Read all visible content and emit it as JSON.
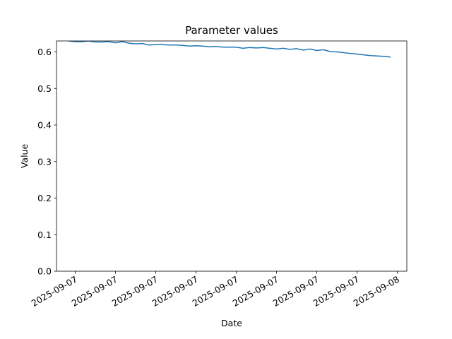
{
  "chart_data": {
    "type": "line",
    "title": "Parameter values",
    "x_label": "Date",
    "y_label": "Value",
    "categories": [
      null,
      "2025-09-07",
      null,
      null,
      null,
      null,
      null,
      "2025-09-07",
      null,
      null,
      null,
      null,
      null,
      "2025-09-07",
      null,
      null,
      null,
      null,
      null,
      "2025-09-07",
      null,
      null,
      null,
      null,
      null,
      "2025-09-07",
      null,
      null,
      null,
      null,
      null,
      "2025-09-07",
      null,
      null,
      null,
      null,
      null,
      "2025-09-07",
      null,
      null,
      null,
      null,
      null,
      "2025-09-07",
      null,
      null,
      null,
      null,
      null,
      "2025-09-08"
    ],
    "series": [
      {
        "color": "#1f77b4",
        "values": [
          0.63,
          0.628,
          0.628,
          0.63,
          0.627,
          0.627,
          0.628,
          0.625,
          0.628,
          0.624,
          0.622,
          0.623,
          0.619,
          0.62,
          0.62,
          0.619,
          0.619,
          0.618,
          0.616,
          0.617,
          0.616,
          0.614,
          0.615,
          0.613,
          0.613,
          0.613,
          0.61,
          0.612,
          0.611,
          0.612,
          0.61,
          0.608,
          0.61,
          0.607,
          0.609,
          0.605,
          0.608,
          0.604,
          0.606,
          0.601,
          0.6,
          0.598,
          0.596,
          0.594,
          0.592,
          0.59,
          0.589,
          0.588,
          0.586,
          null
        ]
      }
    ],
    "ylim": [
      0,
      0.63
    ],
    "yticks": [
      {
        "value": 0,
        "label": "0.0"
      },
      0.1,
      0.2,
      0.3,
      0.4,
      0.5,
      0.6
    ]
  }
}
